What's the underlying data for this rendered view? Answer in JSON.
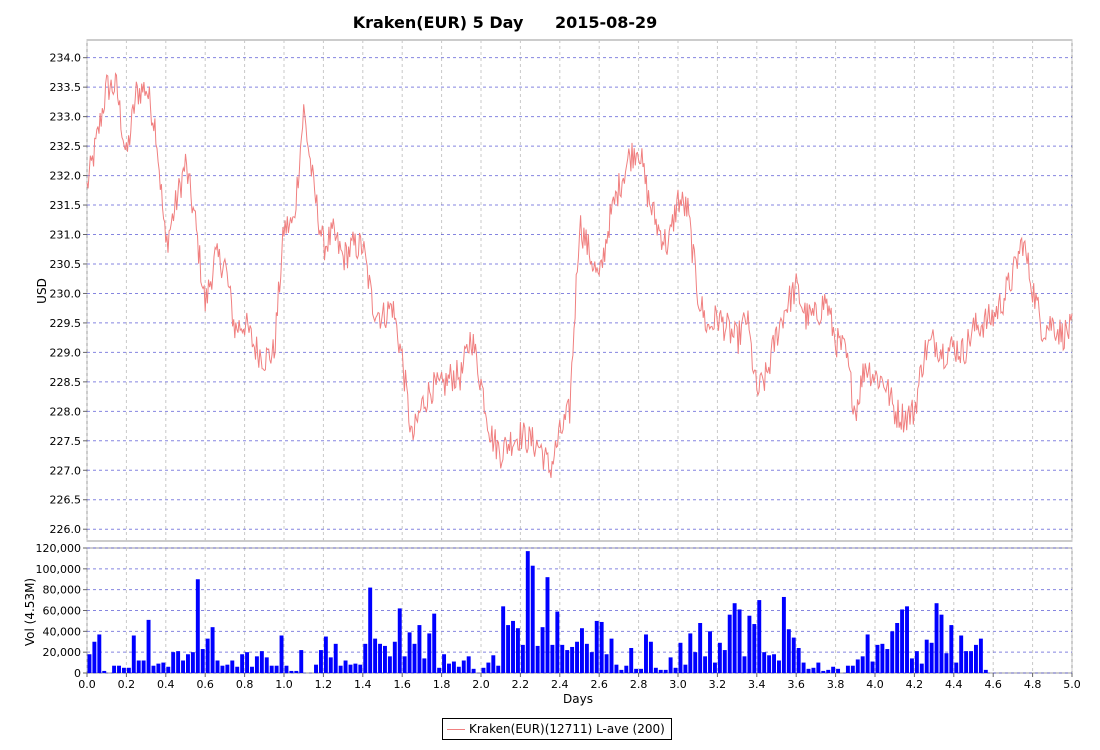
{
  "chart_data": [
    {
      "type": "line",
      "title": "Kraken(EUR) 5 Day",
      "date": "2015-08-29",
      "ylabel": "USD",
      "xlabel": "",
      "xlim": [
        0,
        5.0
      ],
      "ylim": [
        225.8,
        234.3
      ],
      "yticks": [
        "226.0",
        "226.5",
        "227.0",
        "227.5",
        "228.0",
        "228.5",
        "229.0",
        "229.5",
        "230.0",
        "230.5",
        "231.0",
        "231.5",
        "232.0",
        "232.5",
        "233.0",
        "233.5",
        "234.0"
      ],
      "grid": true,
      "color": "#f08080",
      "series": [
        {
          "name": "Kraken(EUR)(12711) L-ave (200)",
          "x": [
            0.0,
            0.05,
            0.1,
            0.15,
            0.2,
            0.25,
            0.3,
            0.35,
            0.4,
            0.45,
            0.5,
            0.55,
            0.6,
            0.65,
            0.7,
            0.75,
            0.8,
            0.85,
            0.9,
            0.95,
            1.0,
            1.05,
            1.1,
            1.15,
            1.2,
            1.25,
            1.3,
            1.35,
            1.4,
            1.45,
            1.5,
            1.55,
            1.6,
            1.65,
            1.7,
            1.75,
            1.8,
            1.85,
            1.9,
            1.95,
            2.0,
            2.05,
            2.1,
            2.15,
            2.2,
            2.25,
            2.3,
            2.35,
            2.4,
            2.45,
            2.5,
            2.55,
            2.6,
            2.65,
            2.7,
            2.75,
            2.8,
            2.85,
            2.9,
            2.95,
            3.0,
            3.05,
            3.1,
            3.15,
            3.2,
            3.25,
            3.3,
            3.35,
            3.4,
            3.45,
            3.5,
            3.55,
            3.6,
            3.65,
            3.7,
            3.75,
            3.8,
            3.85,
            3.9,
            3.95,
            4.0,
            4.05,
            4.1,
            4.15,
            4.2,
            4.25,
            4.3,
            4.35,
            4.4,
            4.45,
            4.5,
            4.55,
            4.6,
            4.65,
            4.7,
            4.75,
            4.8,
            4.85,
            4.9,
            4.95,
            5.0
          ],
          "y": [
            231.8,
            232.6,
            233.5,
            233.5,
            232.3,
            233.4,
            233.5,
            232.8,
            230.8,
            231.5,
            232.2,
            231.2,
            229.8,
            230.6,
            230.5,
            229.4,
            229.5,
            229.1,
            228.9,
            229.0,
            231.1,
            231.2,
            233.1,
            231.8,
            230.8,
            231.0,
            230.6,
            230.8,
            230.8,
            229.8,
            229.6,
            229.8,
            228.9,
            227.5,
            228.1,
            228.4,
            228.4,
            228.6,
            228.6,
            229.3,
            228.5,
            227.6,
            227.3,
            227.5,
            227.6,
            227.5,
            227.4,
            227.0,
            227.6,
            228.0,
            231.2,
            230.7,
            230.2,
            231.2,
            231.8,
            232.3,
            232.5,
            231.6,
            231.1,
            230.8,
            231.6,
            231.4,
            230.0,
            229.4,
            229.6,
            229.4,
            229.2,
            229.6,
            228.3,
            228.6,
            229.3,
            229.8,
            230.1,
            229.6,
            229.6,
            229.9,
            229.2,
            229.0,
            228.0,
            228.8,
            228.6,
            228.5,
            228.0,
            227.9,
            228.0,
            229.0,
            229.2,
            229.0,
            229.1,
            229.0,
            229.4,
            229.5,
            229.6,
            229.9,
            230.3,
            230.9,
            230.1,
            229.4,
            229.5,
            229.3,
            229.4
          ]
        }
      ]
    },
    {
      "type": "bar",
      "ylabel": "Vol (4.53M)",
      "xlabel": "Days",
      "xlim": [
        0,
        5.0
      ],
      "ylim": [
        0,
        120000
      ],
      "yticks": [
        "0",
        "20,000",
        "40,000",
        "60,000",
        "80,000",
        "100,000",
        "120,000"
      ],
      "xticks": [
        "0.0",
        "0.2",
        "0.4",
        "0.6",
        "0.8",
        "1.0",
        "1.2",
        "1.4",
        "1.6",
        "1.8",
        "2.0",
        "2.2",
        "2.4",
        "2.6",
        "2.8",
        "3.0",
        "3.2",
        "3.4",
        "3.6",
        "3.8",
        "4.0",
        "4.2",
        "4.4",
        "4.6",
        "4.8",
        "5.0"
      ],
      "color": "#0000ff",
      "grid": true,
      "bin_width": 0.025,
      "values": [
        18000,
        30000,
        37000,
        2000,
        0,
        7000,
        7000,
        5000,
        5000,
        36000,
        12000,
        12000,
        51000,
        7000,
        9000,
        10000,
        6000,
        20000,
        21000,
        12000,
        18000,
        20000,
        90000,
        23000,
        33000,
        44000,
        12000,
        7000,
        8000,
        12000,
        6000,
        18000,
        20000,
        6000,
        16000,
        21000,
        15000,
        7000,
        7000,
        36000,
        7000,
        2000,
        2000,
        22000,
        0,
        0,
        8000,
        22000,
        35000,
        15000,
        28000,
        7000,
        12000,
        8000,
        9000,
        8000,
        28000,
        82000,
        33000,
        28000,
        26000,
        16000,
        30000,
        62000,
        16000,
        39000,
        28000,
        46000,
        14000,
        38000,
        57000,
        5000,
        18000,
        9000,
        11000,
        6000,
        12000,
        16000,
        4000,
        0,
        5000,
        10000,
        17000,
        7000,
        64000,
        46000,
        50000,
        43000,
        27000,
        117000,
        103000,
        26000,
        44000,
        92000,
        27000,
        59000,
        27000,
        22000,
        25000,
        30000,
        43000,
        28000,
        20000,
        50000,
        49000,
        18000,
        33000,
        8000,
        3000,
        7000,
        24000,
        4000,
        4000,
        37000,
        30000,
        5000,
        3000,
        3000,
        15000,
        5000,
        29000,
        8000,
        38000,
        20000,
        48000,
        16000,
        40000,
        10000,
        29000,
        22000,
        56000,
        67000,
        61000,
        16000,
        55000,
        47000,
        70000,
        20000,
        17000,
        18000,
        12000,
        73000,
        42000,
        34000,
        24000,
        10000,
        4000,
        5000,
        10000,
        2000,
        3000,
        6000,
        4000,
        0,
        7000,
        7000,
        13000,
        16000,
        37000,
        11000,
        27000,
        28000,
        23000,
        40000,
        48000,
        61000,
        64000,
        14000,
        21000,
        9000,
        32000,
        29000,
        67000,
        56000,
        19000,
        46000,
        10000,
        36000,
        21000,
        21000,
        27000,
        33000,
        3000
      ]
    }
  ],
  "legend": {
    "label": "Kraken(EUR)(12711) L-ave (200)"
  }
}
